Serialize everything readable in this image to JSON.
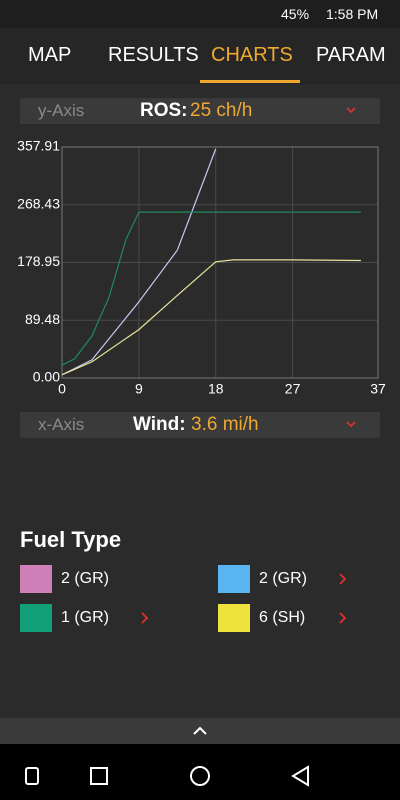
{
  "status_bar": {
    "battery": "45%",
    "time": "1:58 PM"
  },
  "tabs": [
    "MAP",
    "RESULTS",
    "CHARTS",
    "PARAM"
  ],
  "y_selector": {
    "label": "y-Axis",
    "name": "ROS:",
    "value": "25 ch/h"
  },
  "x_selector": {
    "label": "x-Axis",
    "name": "Wind:",
    "value": "3.6 mi/h"
  },
  "chart_data": {
    "type": "line",
    "legend_title": "Fuel Type",
    "xlim": [
      0,
      37
    ],
    "xticks": [
      0,
      9,
      18,
      27,
      37
    ],
    "ylim": [
      0,
      357.91
    ],
    "yticks": [
      {
        "value": 0,
        "label": "0.00"
      },
      89.48,
      178.95,
      268.43,
      357.91
    ],
    "grid": true,
    "series": [
      {
        "name": "2 (GR)",
        "color": "#d080b8",
        "x": [],
        "values": []
      },
      {
        "name": "2 (GR)",
        "color": "#5ab4f0",
        "line_color": "#c4c8f4",
        "x": [
          0,
          3.5,
          9,
          13.5,
          18
        ],
        "values": [
          5,
          28,
          118,
          198,
          355
        ]
      },
      {
        "name": "1 (GR)",
        "color": "#12a078",
        "line_color": "#1f8a5c",
        "x": [
          0,
          1.5,
          3.5,
          5.5,
          7.5,
          9,
          18,
          27,
          35
        ],
        "values": [
          20,
          30,
          65,
          125,
          215,
          257,
          257,
          257,
          257
        ]
      },
      {
        "name": "6 (SH)",
        "color": "#f0e23c",
        "line_color": "#e8e49a",
        "x": [
          0,
          3.5,
          9,
          13.5,
          18,
          20,
          27,
          35
        ],
        "values": [
          5,
          25,
          75,
          128,
          180,
          183,
          183,
          182
        ]
      }
    ]
  }
}
